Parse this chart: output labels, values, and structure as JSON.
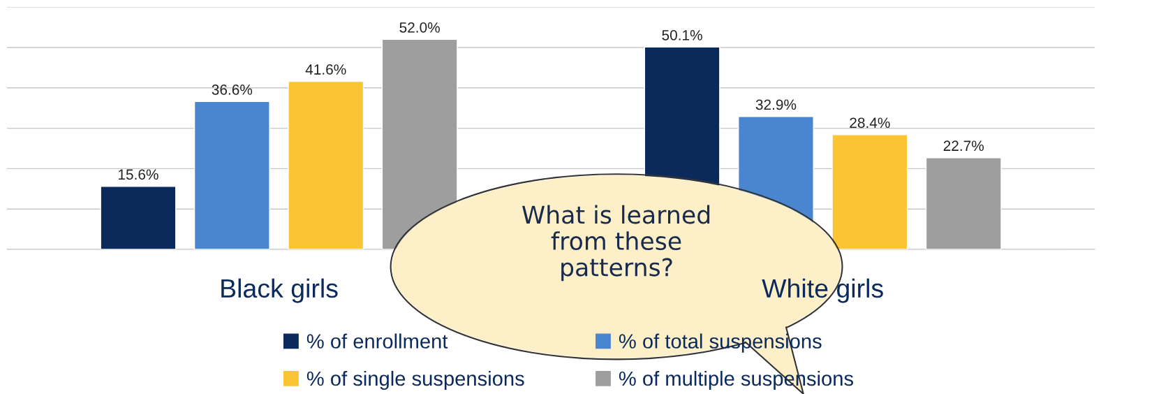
{
  "chart_data": {
    "type": "bar",
    "categories": [
      "Black girls",
      "White girls"
    ],
    "series": [
      {
        "name": "% of enrollment",
        "color": "#0b2a5b",
        "values": [
          15.6,
          50.1
        ],
        "value_labels": [
          "15.6%",
          "50.1%"
        ]
      },
      {
        "name": "% of total suspensions",
        "color": "#4a86d0",
        "values": [
          36.6,
          32.9
        ],
        "value_labels": [
          "36.6%",
          "32.9%"
        ]
      },
      {
        "name": "% of single suspensions",
        "color": "#fbc432",
        "values": [
          41.6,
          28.4
        ],
        "value_labels": [
          "41.6%",
          "28.4%"
        ]
      },
      {
        "name": "% of multiple suspensions",
        "color": "#9e9e9e",
        "values": [
          52.0,
          22.7
        ],
        "value_labels": [
          "52.0%",
          "22.7%"
        ]
      }
    ],
    "ylim": [
      0,
      60
    ],
    "yticks": [
      {
        "value": 0,
        "label": null
      },
      {
        "value": 10,
        "label": null
      },
      {
        "value": 20,
        "label": null
      },
      {
        "value": 30,
        "label": null
      },
      {
        "value": 40,
        "label": null
      },
      {
        "value": 50,
        "label": null
      },
      {
        "value": 60,
        "label": null
      }
    ],
    "tick_labels": "x",
    "grid": "y",
    "legend": "bottom",
    "annotations": [
      "What is learned\nfrom these\npatterns?"
    ]
  }
}
